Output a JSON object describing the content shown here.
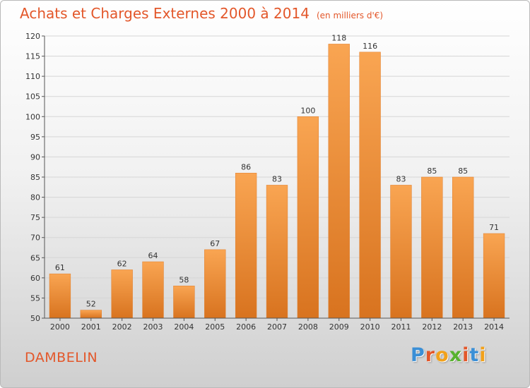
{
  "header": {
    "title": "Achats et Charges Externes 2000 à 2014",
    "unit": "(en milliers d'€)"
  },
  "footer": {
    "town": "DAMBELIN",
    "logo": "Proxiti",
    "logo_colors": [
      "#3b8fd6",
      "#e3572a",
      "#f2a11a",
      "#58b22f",
      "#e3572a",
      "#3b8fd6",
      "#f2a11a"
    ]
  },
  "colors": {
    "bar_light": "#f9a552",
    "bar_dark": "#d8731f",
    "accent": "#e3572a"
  },
  "chart_data": {
    "type": "bar",
    "categories": [
      "2000",
      "2001",
      "2002",
      "2003",
      "2004",
      "2005",
      "2006",
      "2007",
      "2008",
      "2009",
      "2010",
      "2011",
      "2012",
      "2013",
      "2014"
    ],
    "values": [
      61,
      52,
      62,
      64,
      58,
      67,
      86,
      83,
      100,
      118,
      116,
      83,
      85,
      85,
      71
    ],
    "title": "Achats et Charges Externes 2000 à 2014",
    "ylim": [
      50,
      120
    ],
    "yticks": [
      50,
      55,
      60,
      65,
      70,
      75,
      80,
      85,
      90,
      95,
      100,
      105,
      110,
      115,
      120
    ],
    "grid": true
  }
}
